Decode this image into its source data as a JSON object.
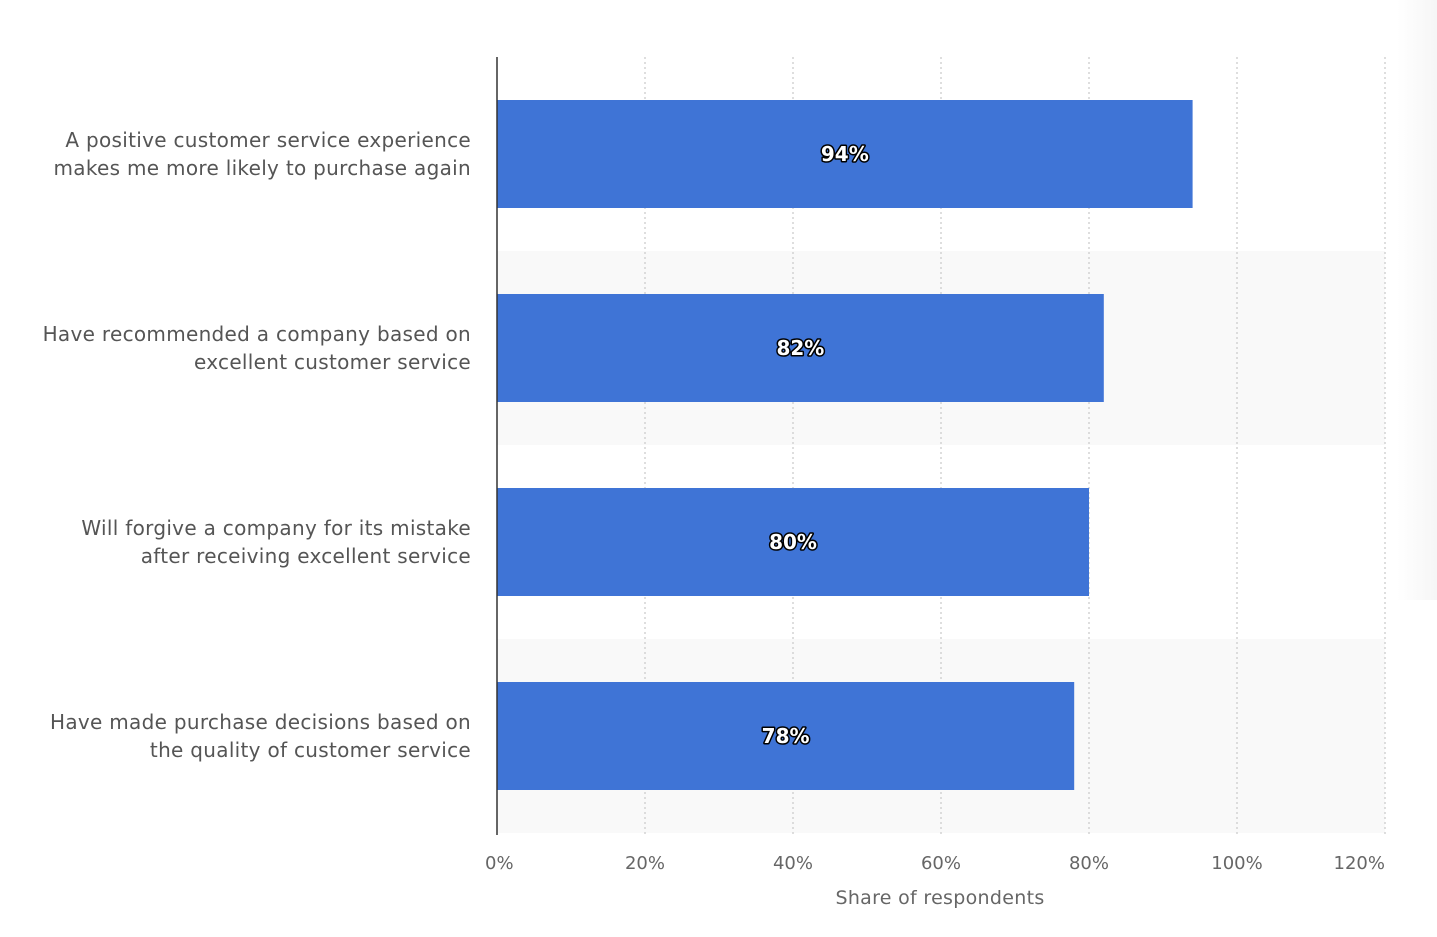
{
  "chart_data": {
    "type": "bar",
    "orientation": "horizontal",
    "categories": [
      [
        "A positive customer service experience",
        "makes me more likely to purchase again"
      ],
      [
        "Have recommended a company based on",
        "excellent customer service"
      ],
      [
        "Will forgive a company for its mistake",
        "after receiving excellent service"
      ],
      [
        "Have made purchase decisions based on",
        "the quality of customer service"
      ]
    ],
    "values": [
      94,
      82,
      80,
      78
    ],
    "value_labels": [
      "94%",
      "82%",
      "80%",
      "78%"
    ],
    "xlabel": "Share of respondents",
    "ylabel": "",
    "xlim": [
      0,
      120
    ],
    "ticks": [
      0,
      20,
      40,
      60,
      80,
      100,
      120
    ],
    "tick_labels": [
      "0%",
      "20%",
      "40%",
      "60%",
      "80%",
      "100%",
      "120%"
    ],
    "grid": "dotted vertical",
    "bar_color": "#3f74d6",
    "band_color": "#f9f9f9"
  }
}
